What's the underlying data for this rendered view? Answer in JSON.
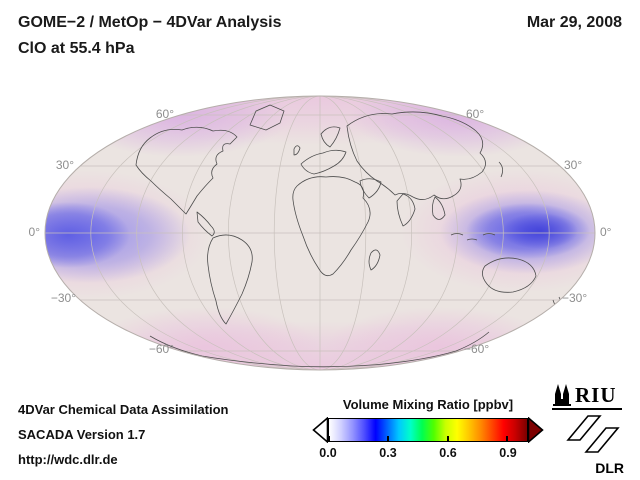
{
  "header": {
    "title": "GOME−2 / MetOp − 4DVar Analysis",
    "subtitle": "ClO at 55.4 hPa",
    "date": "Mar 29, 2008"
  },
  "map": {
    "lat_labels_left": [
      "60°",
      "30°",
      "0°",
      "−30°",
      "−60°"
    ],
    "lat_labels_right": [
      "60°",
      "30°",
      "0°",
      "−30°",
      "−60°"
    ]
  },
  "colorbar": {
    "title": "Volume Mixing Ratio [ppbv]",
    "tick_labels": [
      "0.0",
      "0.3",
      "0.6",
      "0.9"
    ],
    "tick_values": [
      0.0,
      0.3,
      0.6,
      0.9
    ],
    "min": 0.0,
    "max": 1.0,
    "colors": [
      "#ffffff",
      "#d2d2ff",
      "#9696ff",
      "#5050ff",
      "#0000ff",
      "#0064ff",
      "#00c8ff",
      "#00ffc8",
      "#00ff50",
      "#50ff00",
      "#c8ff00",
      "#ffff00",
      "#ffc800",
      "#ff8c00",
      "#ff4600",
      "#ff0000",
      "#c80000",
      "#7d0000"
    ],
    "left_arrow_color": "#ffffff",
    "right_arrow_color": "#7d0000"
  },
  "footer": {
    "line1": "4DVar Chemical Data Assimilation",
    "line2": "SACADA Version 1.7",
    "line3": "http://wdc.dlr.de"
  },
  "logos": {
    "riu": "RIU",
    "dlr": "DLR"
  },
  "chart_data": {
    "type": "heatmap",
    "projection": "mollweide world map",
    "title": "GOME−2 / MetOp − 4DVar Analysis",
    "subtitle": "ClO at 55.4 hPa",
    "date": "Mar 29, 2008",
    "variable": "ClO volume mixing ratio",
    "pressure_level_hPa": 55.4,
    "colorbar_label": "Volume Mixing Ratio [ppbv]",
    "colorbar_ticks": [
      0.0,
      0.3,
      0.6,
      0.9
    ],
    "colorbar_range": [
      0.0,
      1.0
    ],
    "latitude_gridlines_deg": [
      60,
      30,
      0,
      -30,
      -60
    ],
    "longitude_gridline_spacing_deg": 30,
    "grid": true,
    "legend_position": "bottom-center",
    "regions": [
      {
        "region": "equatorial band at western map edge (central Pacific, ~15S–15N)",
        "approx_value_ppbv": 0.15,
        "appearance": "blue-violet patch"
      },
      {
        "region": "equatorial maritime continent / Indonesia to eastern map edge (~15S–10N)",
        "approx_value_ppbv": 0.2,
        "appearance": "strongest blue patch"
      },
      {
        "region": "high latitudes north of ~50N",
        "approx_value_ppbv": 0.05,
        "appearance": "pale pink/violet rim"
      },
      {
        "region": "high latitudes south of ~50S",
        "approx_value_ppbv": 0.05,
        "appearance": "pale pink rim"
      },
      {
        "region": "mid-latitude background",
        "approx_value_ppbv": 0.02,
        "appearance": "pale beige"
      }
    ]
  }
}
